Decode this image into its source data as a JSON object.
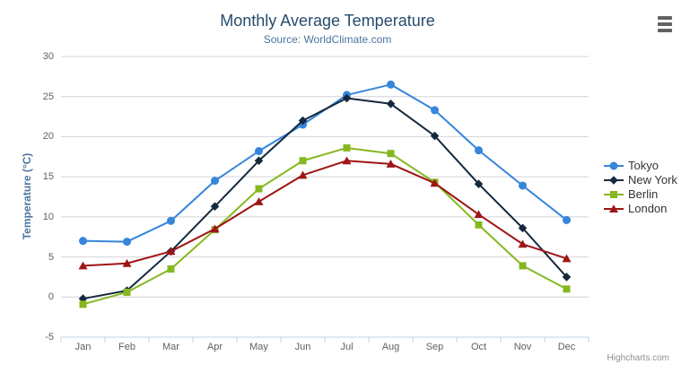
{
  "credit": "Highcharts.com",
  "colors": {
    "title": "#274b6d",
    "subtitle": "#4d759e",
    "axis_label": "#606060",
    "gridline": "#d4d4d4",
    "axis_line": "#c0d0e0",
    "legend_text": "#333333",
    "credit": "#8f8f8f",
    "menu_icon": "#616161"
  },
  "chart_data": {
    "type": "line",
    "title": "Monthly Average Temperature",
    "subtitle": "Source: WorldClimate.com",
    "xlabel": "",
    "ylabel": "Temperature (°C)",
    "ylim": [
      -5,
      30
    ],
    "yticks": [
      -5,
      0,
      5,
      10,
      15,
      20,
      25,
      30
    ],
    "grid": true,
    "legend_position": "right-middle",
    "categories": [
      "Jan",
      "Feb",
      "Mar",
      "Apr",
      "May",
      "Jun",
      "Jul",
      "Aug",
      "Sep",
      "Oct",
      "Nov",
      "Dec"
    ],
    "series": [
      {
        "name": "Tokyo",
        "color": "#3585db",
        "marker": "circle",
        "values": [
          7.0,
          6.9,
          9.5,
          14.5,
          18.2,
          21.5,
          25.2,
          26.5,
          23.3,
          18.3,
          13.9,
          9.6
        ]
      },
      {
        "name": "New York",
        "color": "#14293e",
        "marker": "diamond",
        "values": [
          -0.2,
          0.8,
          5.7,
          11.3,
          17.0,
          22.0,
          24.8,
          24.1,
          20.1,
          14.1,
          8.6,
          2.5
        ]
      },
      {
        "name": "Berlin",
        "color": "#86b71f",
        "marker": "square",
        "values": [
          -0.9,
          0.6,
          3.5,
          8.4,
          13.5,
          17.0,
          18.6,
          17.9,
          14.3,
          9.0,
          3.9,
          1.0
        ]
      },
      {
        "name": "London",
        "color": "#9e1515",
        "marker": "triangle",
        "values": [
          3.9,
          4.2,
          5.7,
          8.5,
          11.9,
          15.2,
          17.0,
          16.6,
          14.2,
          10.3,
          6.6,
          4.8
        ]
      }
    ]
  }
}
